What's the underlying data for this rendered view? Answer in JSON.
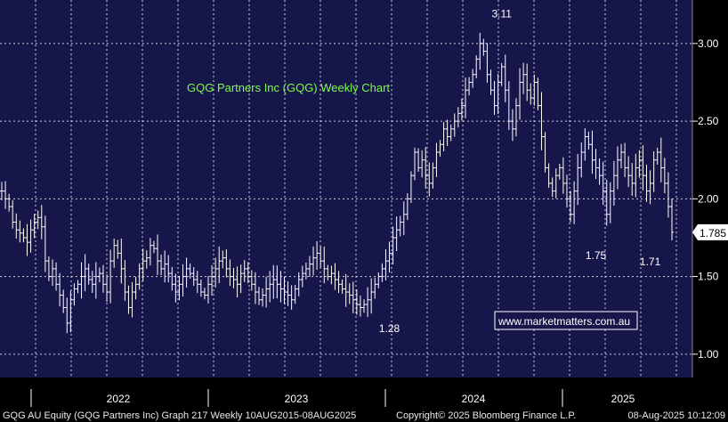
{
  "chart_data": {
    "type": "ohlc-bar",
    "title": "GQG Partners Inc (GQG) Weekly Chart",
    "y_ticks": [
      "3.00",
      "2.50",
      "2.00",
      "1.50",
      "1.00"
    ],
    "y_tick_values": [
      3.0,
      2.5,
      2.0,
      1.5,
      1.0
    ],
    "ylim": [
      0.85,
      3.28
    ],
    "x_ticks": [
      "2022",
      "2023",
      "2024",
      "2025"
    ],
    "last_price": 1.785,
    "last_price_label": "1.785",
    "annotations": [
      {
        "text": "3.11",
        "week": 138,
        "value": 3.11
      },
      {
        "text": "1.28",
        "week": 107,
        "value": 1.28
      },
      {
        "text": "1.75",
        "week": 164,
        "value": 1.75
      },
      {
        "text": "1.71",
        "week": 179,
        "value": 1.71
      }
    ],
    "grid": true,
    "series_close": [
      2.05,
      2.0,
      1.95,
      1.85,
      1.8,
      1.78,
      1.75,
      1.72,
      1.8,
      1.85,
      1.88,
      1.82,
      1.6,
      1.5,
      1.55,
      1.45,
      1.38,
      1.3,
      1.2,
      1.35,
      1.42,
      1.45,
      1.5,
      1.55,
      1.48,
      1.45,
      1.5,
      1.52,
      1.45,
      1.4,
      1.6,
      1.7,
      1.65,
      1.55,
      1.4,
      1.3,
      1.4,
      1.45,
      1.55,
      1.6,
      1.62,
      1.7,
      1.68,
      1.6,
      1.55,
      1.58,
      1.52,
      1.45,
      1.4,
      1.45,
      1.5,
      1.55,
      1.52,
      1.48,
      1.45,
      1.4,
      1.38,
      1.45,
      1.5,
      1.55,
      1.6,
      1.62,
      1.55,
      1.5,
      1.48,
      1.45,
      1.52,
      1.55,
      1.5,
      1.45,
      1.4,
      1.35,
      1.38,
      1.42,
      1.45,
      1.48,
      1.45,
      1.42,
      1.4,
      1.38,
      1.35,
      1.42,
      1.48,
      1.52,
      1.55,
      1.58,
      1.62,
      1.65,
      1.6,
      1.55,
      1.5,
      1.52,
      1.48,
      1.45,
      1.42,
      1.4,
      1.38,
      1.35,
      1.32,
      1.3,
      1.32,
      1.35,
      1.4,
      1.45,
      1.5,
      1.55,
      1.6,
      1.65,
      1.75,
      1.8,
      1.85,
      1.9,
      2.0,
      2.15,
      2.3,
      2.2,
      2.25,
      2.15,
      2.1,
      2.2,
      2.3,
      2.35,
      2.45,
      2.4,
      2.45,
      2.5,
      2.55,
      2.6,
      2.7,
      2.75,
      2.8,
      2.9,
      3.0,
      2.95,
      2.8,
      2.7,
      2.6,
      2.75,
      2.85,
      2.7,
      2.5,
      2.45,
      2.6,
      2.75,
      2.8,
      2.7,
      2.65,
      2.75,
      2.6,
      2.4,
      2.2,
      2.1,
      2.05,
      2.15,
      2.2,
      2.1,
      2.0,
      1.9,
      2.05,
      2.2,
      2.3,
      2.4,
      2.35,
      2.25,
      2.2,
      2.15,
      2.05,
      1.9,
      2.05,
      2.15,
      2.25,
      2.3,
      2.2,
      2.15,
      2.1,
      2.2,
      2.25,
      2.15,
      2.05,
      2.1,
      2.25,
      2.3,
      2.2,
      2.1,
      1.95,
      1.785
    ]
  },
  "watermark": "www.marketmatters.com.au",
  "footer": {
    "left": "GQG AU Equity (GQG Partners Inc) Graph 217  Weekly 10AUG2015-08AUG2025",
    "center": "Copyright© 2025 Bloomberg Finance L.P.",
    "right": "08-Aug-2025 10:12:09"
  },
  "colors": {
    "plot_bg": "#16164a",
    "bars": "#ffffff",
    "grid": "#ffffff",
    "title": "#7CFC4A",
    "last_label_bg": "#ffffff"
  }
}
